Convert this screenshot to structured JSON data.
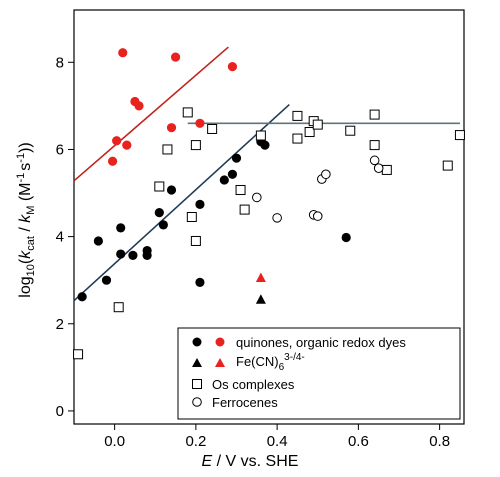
{
  "chart_data": {
    "type": "scatter",
    "xlim": [
      -0.1,
      0.86
    ],
    "ylim": [
      -0.3,
      9.2
    ],
    "x_ticks": [
      "0.0",
      "0.2",
      "0.4",
      "0.6",
      "0.8"
    ],
    "x_tick_values": [
      0.0,
      0.2,
      0.4,
      0.6,
      0.8
    ],
    "y_ticks": [
      "0",
      "2",
      "4",
      "6",
      "8"
    ],
    "y_tick_values": [
      0,
      2,
      4,
      6,
      8
    ],
    "xlabel": {
      "italic": "E",
      "rest": " / V vs. SHE"
    },
    "ylabel": {
      "prefix": "log",
      "sub1": "10",
      "open": "(",
      "k1": "k",
      "sub2": "cat",
      "mid": " / ",
      "k2": "k",
      "sub3": "M",
      "units": " (M",
      "sup1": "-1",
      "s": "s",
      "sup2": "-1",
      "close": "))"
    },
    "grid": false,
    "legend_position": "bottom-right",
    "colors": {
      "black": "#000000",
      "red": "#e8221f",
      "dark_red": "#c0241c",
      "steel": "#5f7479",
      "navy": "#1f3c57"
    },
    "legend": [
      {
        "markers": [
          "black-circle",
          "red-circle"
        ],
        "label": "quinones, organic redox dyes"
      },
      {
        "markers": [
          "black-triangle",
          "red-triangle"
        ],
        "label_main": "Fe(CN)",
        "label_sub": "6",
        "label_sup": "3-/4-"
      },
      {
        "markers": [
          "open-square"
        ],
        "label": "Os complexes"
      },
      {
        "markers": [
          "open-circle"
        ],
        "label": "Ferrocenes"
      }
    ],
    "series": [
      {
        "marker": "filled-circle",
        "color": "#000000",
        "points": [
          [
            -0.08,
            2.62
          ],
          [
            -0.04,
            3.9
          ],
          [
            -0.02,
            3.0
          ],
          [
            0.015,
            4.2
          ],
          [
            0.015,
            3.6
          ],
          [
            0.045,
            3.57
          ],
          [
            0.08,
            3.68
          ],
          [
            0.08,
            3.57
          ],
          [
            0.11,
            4.55
          ],
          [
            0.12,
            4.27
          ],
          [
            0.14,
            5.07
          ],
          [
            0.21,
            4.74
          ],
          [
            0.21,
            2.95
          ],
          [
            0.27,
            5.3
          ],
          [
            0.29,
            5.43
          ],
          [
            0.3,
            5.8
          ],
          [
            0.36,
            6.18
          ],
          [
            0.37,
            6.1
          ],
          [
            0.57,
            3.98
          ]
        ]
      },
      {
        "marker": "filled-circle",
        "color": "#e8221f",
        "points": [
          [
            -0.005,
            5.73
          ],
          [
            0.005,
            6.2
          ],
          [
            0.02,
            8.22
          ],
          [
            0.03,
            6.1
          ],
          [
            0.05,
            7.1
          ],
          [
            0.06,
            7.0
          ],
          [
            0.14,
            6.5
          ],
          [
            0.15,
            8.12
          ],
          [
            0.21,
            6.6
          ],
          [
            0.29,
            7.9
          ]
        ]
      },
      {
        "marker": "filled-triangle",
        "color": "#000000",
        "points": [
          [
            0.36,
            2.55
          ]
        ]
      },
      {
        "marker": "filled-triangle",
        "color": "#e8221f",
        "points": [
          [
            0.36,
            3.05
          ]
        ]
      },
      {
        "marker": "open-square",
        "color": "#000000",
        "points": [
          [
            -0.09,
            1.3
          ],
          [
            0.01,
            2.38
          ],
          [
            0.11,
            5.15
          ],
          [
            0.13,
            6.0
          ],
          [
            0.18,
            6.85
          ],
          [
            0.19,
            4.45
          ],
          [
            0.2,
            3.9
          ],
          [
            0.2,
            6.1
          ],
          [
            0.24,
            6.47
          ],
          [
            0.31,
            5.07
          ],
          [
            0.32,
            4.62
          ],
          [
            0.36,
            6.32
          ],
          [
            0.45,
            6.77
          ],
          [
            0.45,
            6.25
          ],
          [
            0.48,
            6.4
          ],
          [
            0.49,
            6.65
          ],
          [
            0.5,
            6.57
          ],
          [
            0.58,
            6.43
          ],
          [
            0.64,
            6.1
          ],
          [
            0.64,
            6.8
          ],
          [
            0.67,
            5.53
          ],
          [
            0.82,
            5.63
          ],
          [
            0.85,
            6.33
          ]
        ]
      },
      {
        "marker": "open-circle",
        "color": "#000000",
        "points": [
          [
            0.35,
            4.9
          ],
          [
            0.4,
            4.43
          ],
          [
            0.49,
            4.5
          ],
          [
            0.5,
            4.47
          ],
          [
            0.51,
            5.32
          ],
          [
            0.52,
            5.43
          ],
          [
            0.64,
            5.75
          ],
          [
            0.65,
            5.57
          ]
        ]
      }
    ],
    "fit_lines": [
      {
        "color": "#c0241c",
        "from": [
          -0.1,
          5.28
        ],
        "to": [
          0.28,
          8.35
        ]
      },
      {
        "color": "#1f3c57",
        "from": [
          -0.1,
          2.53
        ],
        "to": [
          0.43,
          7.03
        ]
      },
      {
        "color": "#5f7479",
        "from": [
          0.18,
          6.6
        ],
        "to": [
          0.85,
          6.6
        ]
      }
    ]
  }
}
